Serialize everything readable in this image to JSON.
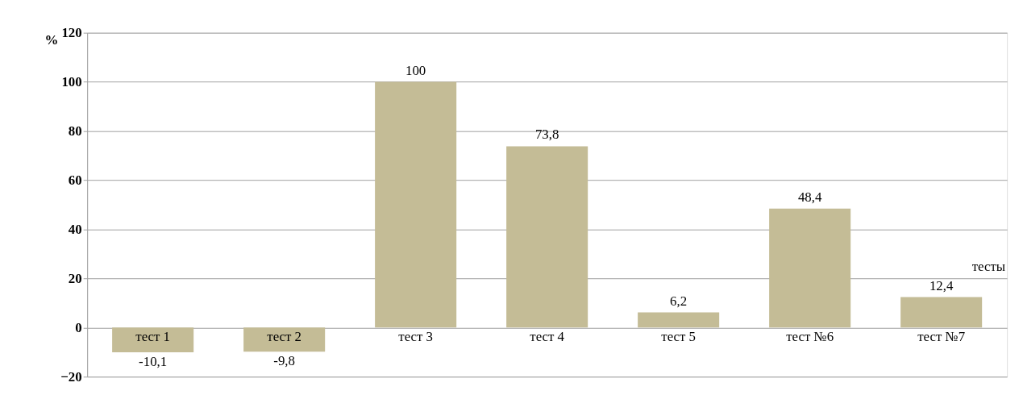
{
  "chart_data": {
    "type": "bar",
    "ylabel": "%",
    "categories": [
      "тест 1",
      "тест 2",
      "тест 3",
      "тест 4",
      "тест 5",
      "тест №6",
      "тест №7"
    ],
    "values": [
      -10.1,
      -9.8,
      100,
      73.8,
      6.2,
      48.4,
      12.4
    ],
    "value_labels": [
      "-10,1",
      "-9,8",
      "100",
      "73,8",
      "6,2",
      "48,4",
      "12,4"
    ],
    "annotations": [
      "тесты"
    ],
    "color": "#c4bc96",
    "ylim": [
      -20,
      120
    ],
    "yticks": [
      -20,
      0,
      20,
      40,
      60,
      80,
      100,
      120
    ],
    "grid": "y"
  }
}
